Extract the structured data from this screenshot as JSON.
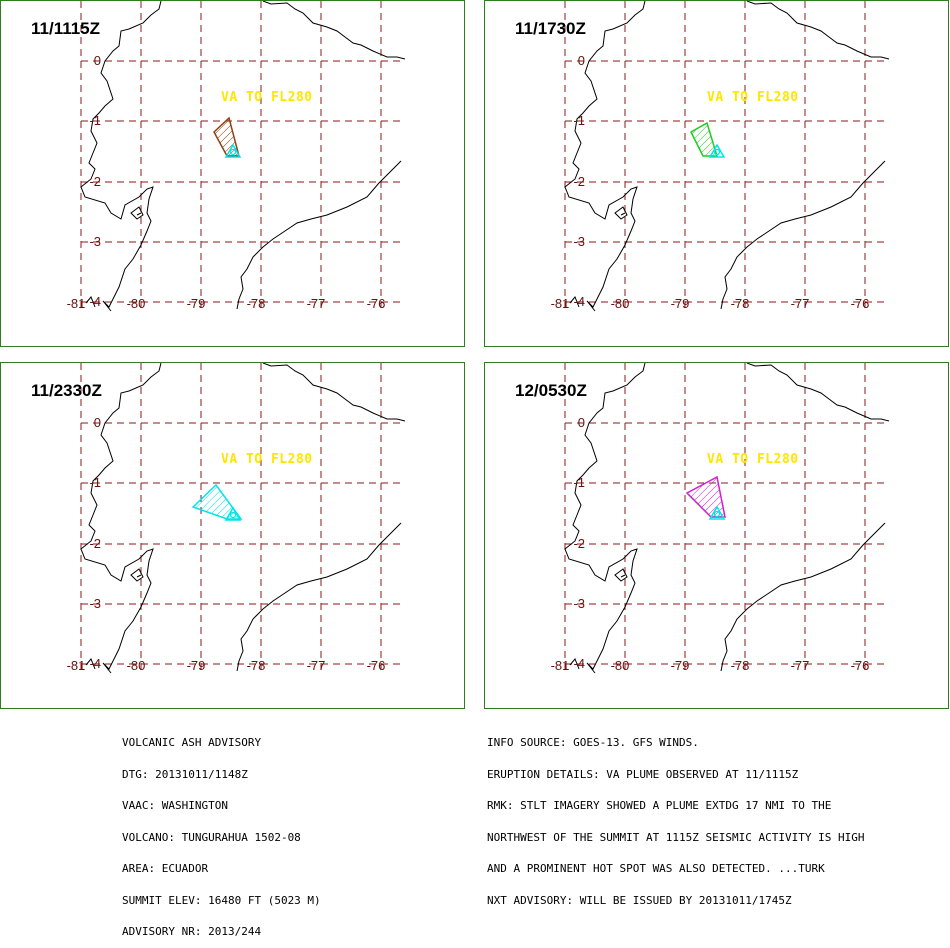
{
  "colors": {
    "border": "#2e7d1e",
    "grid": "#8b1a1a",
    "coast": "#000000",
    "va_label": "#ffe600",
    "summit_marker": "#00e5e5"
  },
  "map": {
    "lat_ticks": [
      "0",
      "-1",
      "-2",
      "-3",
      "-4"
    ],
    "lon_ticks": [
      "-81",
      "-80",
      "-79",
      "-78",
      "-77",
      "-76"
    ]
  },
  "panels": [
    {
      "time": "11/1115Z",
      "va_label": "VA TO FL280",
      "plume_color": "#8b4513"
    },
    {
      "time": "11/1730Z",
      "va_label": "VA TO FL280",
      "plume_color": "#22cc22"
    },
    {
      "time": "11/2330Z",
      "va_label": "VA TO FL280",
      "plume_color": "#00e5e5"
    },
    {
      "time": "12/0530Z",
      "va_label": "VA TO FL280",
      "plume_color": "#d020d0"
    }
  ],
  "advisory": {
    "left_lines": [
      "VOLCANIC ASH ADVISORY",
      "DTG: 20131011/1148Z",
      "VAAC: WASHINGTON",
      "VOLCANO: TUNGURAHUA 1502-08",
      "AREA: ECUADOR",
      "SUMMIT ELEV: 16480 FT (5023 M)",
      "ADVISORY NR: 2013/244"
    ],
    "right_lines": [
      "INFO SOURCE: GOES-13. GFS WINDS.",
      "ERUPTION DETAILS: VA PLUME OBSERVED AT 11/1115Z",
      "RMK: STLT IMAGERY SHOWED A PLUME EXTDG 17 NMI TO THE",
      "NORTHWEST OF THE SUMMIT AT 1115Z SEISMIC ACTIVITY IS HIGH",
      "AND A PROMINENT HOT SPOT WAS ALSO DETECTED. ...TURK",
      "NXT ADVISORY: WILL BE ISSUED BY 20131011/1745Z"
    ]
  }
}
